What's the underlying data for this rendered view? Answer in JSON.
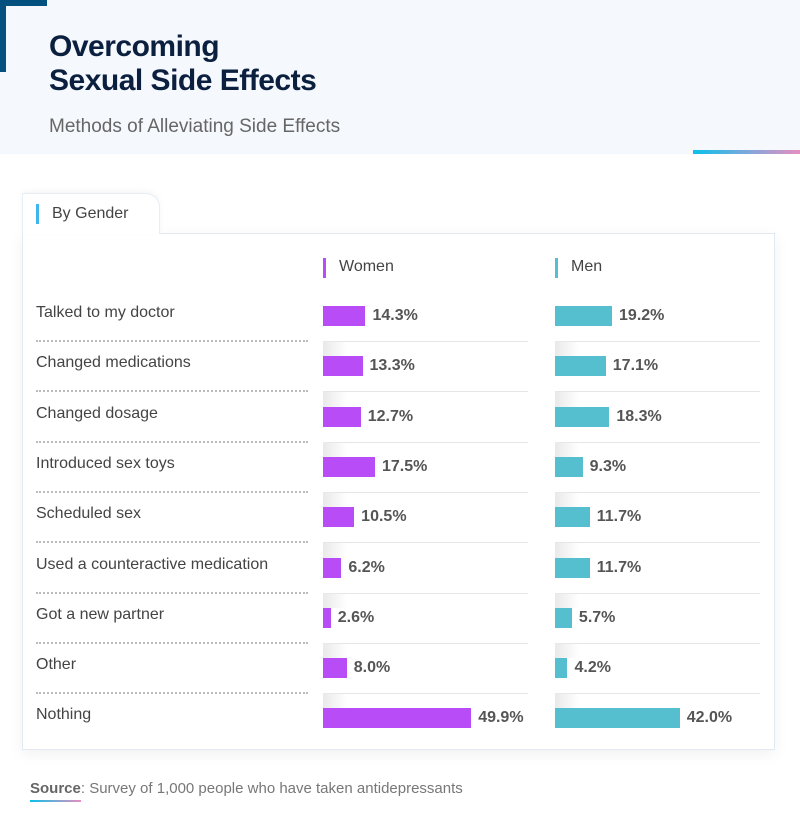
{
  "header": {
    "title_line1": "Overcoming",
    "title_line2": "Sexual Side Effects",
    "subtitle": "Methods of Alleviating Side Effects"
  },
  "tab": {
    "label": "By Gender"
  },
  "source": {
    "label": "Source",
    "text": ": Survey of 1,000 people who have taken antidepressants"
  },
  "chart_data": {
    "type": "bar",
    "orientation": "horizontal",
    "categories": [
      "Talked to my doctor",
      "Changed medications",
      "Changed dosage",
      "Introduced sex toys",
      "Scheduled sex",
      "Used a counteractive medication",
      "Got a new partner",
      "Other",
      "Nothing"
    ],
    "series": [
      {
        "name": "Women",
        "color": "#b84cf7",
        "values": [
          14.3,
          13.3,
          12.7,
          17.5,
          10.5,
          6.2,
          2.6,
          8.0,
          49.9
        ],
        "labels": [
          "14.3%",
          "13.3%",
          "12.7%",
          "17.5%",
          "10.5%",
          "6.2%",
          "2.6%",
          "8.0%",
          "49.9%"
        ]
      },
      {
        "name": "Men",
        "color": "#55bfd0",
        "values": [
          19.2,
          17.1,
          18.3,
          9.3,
          11.7,
          11.7,
          5.7,
          4.2,
          42.0
        ],
        "labels": [
          "19.2%",
          "17.1%",
          "18.3%",
          "9.3%",
          "11.7%",
          "11.7%",
          "5.7%",
          "4.2%",
          "42.0%"
        ]
      }
    ],
    "unit": "%"
  }
}
